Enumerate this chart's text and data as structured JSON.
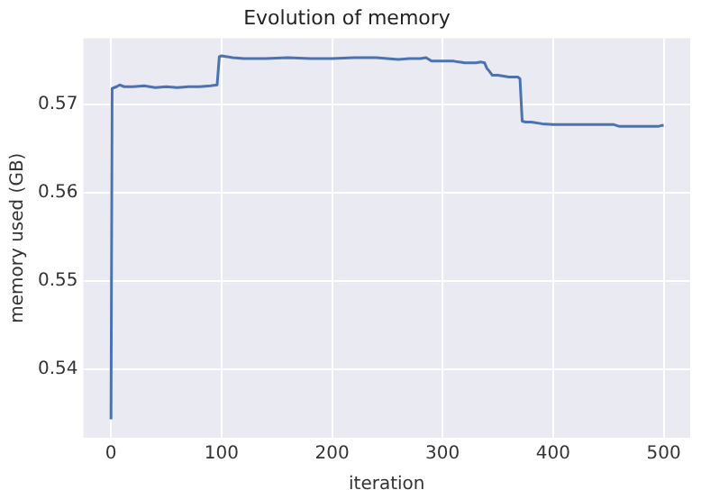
{
  "chart_data": {
    "type": "line",
    "title": "Evolution of memory",
    "xlabel": "iteration",
    "ylabel": "memory used (GB)",
    "xlim": [
      -25,
      524
    ],
    "xticks": [
      0,
      100,
      200,
      300,
      400,
      500
    ],
    "ylim": [
      0.5322,
      0.5775
    ],
    "yticks": [
      0.54,
      0.55,
      0.56,
      0.57
    ],
    "grid": true,
    "legend": false,
    "marker": "none",
    "line_style": "solid",
    "series": [
      {
        "color": "#4c72b0",
        "x": [
          0,
          1,
          3,
          5,
          8,
          12,
          20,
          30,
          40,
          50,
          60,
          70,
          80,
          90,
          96,
          98,
          100,
          105,
          110,
          120,
          140,
          160,
          180,
          200,
          220,
          240,
          250,
          260,
          270,
          280,
          285,
          290,
          300,
          310,
          320,
          330,
          335,
          338,
          340,
          342,
          345,
          350,
          360,
          368,
          370,
          372,
          375,
          380,
          390,
          400,
          420,
          440,
          455,
          460,
          470,
          480,
          490,
          495,
          498,
          500
        ],
        "values": [
          0.5343,
          0.5718,
          0.5719,
          0.572,
          0.5722,
          0.572,
          0.572,
          0.5721,
          0.5719,
          0.572,
          0.5719,
          0.572,
          0.572,
          0.5721,
          0.5722,
          0.5754,
          0.5755,
          0.5754,
          0.5753,
          0.5752,
          0.5752,
          0.5753,
          0.5752,
          0.5752,
          0.5753,
          0.5753,
          0.5752,
          0.5751,
          0.5752,
          0.5752,
          0.5753,
          0.5749,
          0.5749,
          0.5749,
          0.5747,
          0.5747,
          0.5748,
          0.5747,
          0.5741,
          0.5738,
          0.5733,
          0.5733,
          0.5731,
          0.5731,
          0.5729,
          0.5681,
          0.568,
          0.568,
          0.5678,
          0.5677,
          0.5677,
          0.5677,
          0.5677,
          0.5675,
          0.5675,
          0.5675,
          0.5675,
          0.5675,
          0.5676,
          0.5676
        ]
      }
    ]
  }
}
